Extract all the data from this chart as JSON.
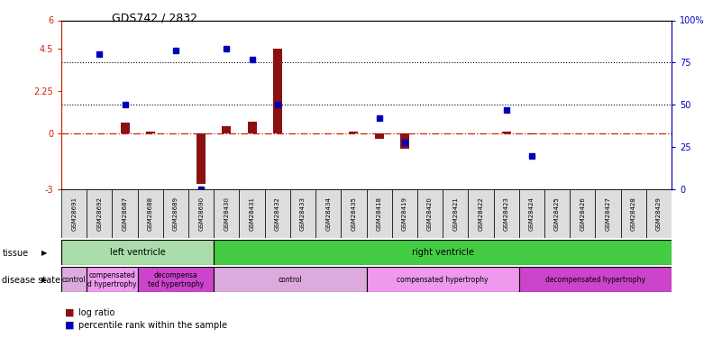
{
  "title": "GDS742 / 2832",
  "samples": [
    "GSM28691",
    "GSM28692",
    "GSM28687",
    "GSM28688",
    "GSM28689",
    "GSM28690",
    "GSM28430",
    "GSM28431",
    "GSM28432",
    "GSM28433",
    "GSM28434",
    "GSM28435",
    "GSM28418",
    "GSM28419",
    "GSM28420",
    "GSM28421",
    "GSM28422",
    "GSM28423",
    "GSM28424",
    "GSM28425",
    "GSM28426",
    "GSM28427",
    "GSM28428",
    "GSM28429"
  ],
  "log_ratio": [
    0.0,
    0.0,
    0.55,
    0.08,
    0.0,
    -2.7,
    0.35,
    0.6,
    4.5,
    0.0,
    0.0,
    0.08,
    -0.3,
    -0.85,
    0.0,
    0.0,
    0.0,
    0.08,
    -0.05,
    0.0,
    0.0,
    0.0,
    0.0,
    0.0
  ],
  "percentile_pct": [
    null,
    80,
    50,
    null,
    82,
    0,
    83,
    77,
    50,
    null,
    null,
    null,
    42,
    28,
    null,
    null,
    null,
    47,
    20,
    null,
    null,
    null,
    null,
    null
  ],
  "ylim_left": [
    -3,
    6
  ],
  "left_yticks": [
    -3,
    0,
    2.25,
    4.5,
    6
  ],
  "left_ytick_labels": [
    "-3",
    "0",
    "2.25",
    "4.5",
    "6"
  ],
  "right_ytick_pcts": [
    0,
    25,
    50,
    75,
    100
  ],
  "right_ytick_labels": [
    "0",
    "25",
    "50",
    "75",
    "100%"
  ],
  "dotted_lines_pct": [
    75,
    50
  ],
  "zero_line_color": "#cc2200",
  "bar_color": "#8b1010",
  "point_color": "#0000bb",
  "tissue_spans": [
    {
      "label": "left ventricle",
      "start": 0,
      "end": 6,
      "color": "#aaddaa"
    },
    {
      "label": "right ventricle",
      "start": 6,
      "end": 24,
      "color": "#44cc44"
    }
  ],
  "disease_spans": [
    {
      "label": "control",
      "start": 0,
      "end": 1,
      "color": "#ddaadd"
    },
    {
      "label": "compensated\nd hypertrophy",
      "start": 1,
      "end": 3,
      "color": "#ee99ee"
    },
    {
      "label": "decompensa\nted hypertrophy",
      "start": 3,
      "end": 6,
      "color": "#cc44cc"
    },
    {
      "label": "control",
      "start": 6,
      "end": 12,
      "color": "#ddaadd"
    },
    {
      "label": "compensated hypertrophy",
      "start": 12,
      "end": 18,
      "color": "#ee99ee"
    },
    {
      "label": "decompensated hypertrophy",
      "start": 18,
      "end": 24,
      "color": "#cc44cc"
    }
  ],
  "background_color": "#ffffff"
}
